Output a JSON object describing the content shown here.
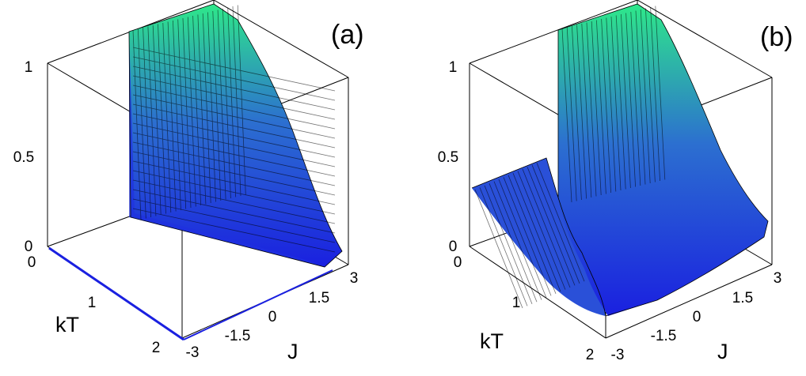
{
  "colors": {
    "surface_low": "#1a20e0",
    "surface_high": "#2ee88a",
    "mesh": "#000000",
    "axes": "#000000"
  },
  "chart_data": [
    {
      "type": "surface3d",
      "panel_label": "(a)",
      "xlabel": "J",
      "ylabel": "kT",
      "zlabel": "",
      "xlim": [
        -3,
        3
      ],
      "ylim": [
        0,
        2
      ],
      "zlim": [
        0,
        1
      ],
      "x_ticks": [
        "-3",
        "-1.5",
        "0",
        "1.5",
        "3"
      ],
      "y_ticks": [
        "0",
        "1",
        "2"
      ],
      "z_ticks": [
        "0",
        "0.5",
        "1"
      ],
      "surface_description": "Zero for J <= 0; for J > 0 jumps to 1 at kT = 0 and decays with kT (approx. 1/cosh^2(J/kT)); at J = 3 the surface is ~1 at kT = 0 falling toward ~0.02 at kT = 2"
    },
    {
      "type": "surface3d",
      "panel_label": "(b)",
      "xlabel": "J",
      "ylabel": "kT",
      "zlabel": "",
      "xlim": [
        -3,
        3
      ],
      "ylim": [
        0,
        2
      ],
      "zlim": [
        0,
        1
      ],
      "x_ticks": [
        "-3",
        "-1.5",
        "0",
        "1.5",
        "3"
      ],
      "y_ticks": [
        "0",
        "1",
        "2"
      ],
      "z_ticks": [
        "0",
        "0.5",
        "1"
      ],
      "surface_description": "For J < 0 the surface is about 0.33 at kT = 0 dipping toward 0 at small kT; for J > 0 it jumps to 1 at kT = 0 and decays with kT; at kT = 2 the surface is ~0.02 at J = -3 rising to ~0.15 at J = 3"
    }
  ]
}
